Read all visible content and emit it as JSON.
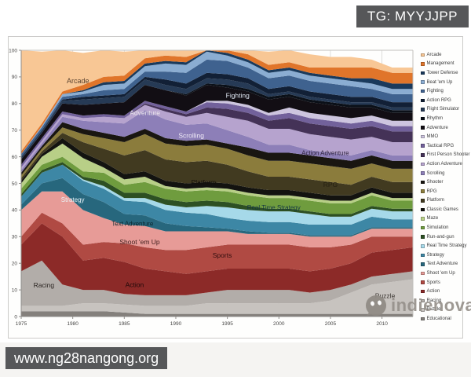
{
  "banners": {
    "top_right": "TG: MYYJJPP",
    "bottom_left": "www.ng28nangong.org"
  },
  "watermark": {
    "text": "indienova",
    "icon": "wechat-bubble-icon",
    "color": "#96918b"
  },
  "page": {
    "background": "#ffffff",
    "banner_bg": "#565759"
  },
  "chart_data": {
    "type": "area",
    "stacked": true,
    "title": "",
    "xlabel": "",
    "ylabel": "",
    "ylim": [
      0,
      100
    ],
    "yticks": [
      0,
      10,
      20,
      30,
      40,
      50,
      60,
      70,
      80,
      90,
      100
    ],
    "xticks": [
      1975,
      1980,
      1985,
      1990,
      1995,
      2000,
      2005,
      2010
    ],
    "grid": "both-light-gray",
    "legend_position": "right-outside",
    "x": [
      1975,
      1977,
      1979,
      1981,
      1983,
      1985,
      1987,
      1989,
      1991,
      1993,
      1995,
      1997,
      1999,
      2001,
      2003,
      2005,
      2007,
      2009,
      2011,
      2013
    ],
    "series": [
      {
        "name": "Educational",
        "color": "#84807c",
        "values": [
          2,
          2,
          2,
          2,
          2,
          1.5,
          1,
          1,
          1,
          1,
          1,
          1,
          1,
          1,
          1,
          1,
          1,
          1,
          1,
          1
        ]
      },
      {
        "name": "Puzzle",
        "color": "#c7c3bf",
        "values": [
          2,
          2,
          2,
          3,
          3,
          3,
          3,
          3,
          3,
          4,
          4,
          4,
          4,
          4,
          4,
          5,
          8,
          11,
          12,
          13
        ]
      },
      {
        "name": "Racing",
        "color": "#b2ada9",
        "values": [
          13,
          17,
          8,
          5,
          5,
          4,
          4,
          4,
          4,
          4,
          5,
          5,
          5,
          5,
          4,
          4,
          3,
          3,
          3,
          3
        ]
      },
      {
        "name": "Action",
        "color": "#8c2a28",
        "values": [
          10,
          14,
          18,
          11,
          12,
          12,
          10,
          9,
          8,
          8,
          8,
          8,
          8,
          8,
          8,
          8,
          8,
          9,
          9,
          9
        ]
      },
      {
        "name": "Sports",
        "color": "#b04a43",
        "values": [
          3,
          4,
          5,
          6,
          6,
          7,
          8,
          8,
          9,
          9,
          9,
          9,
          9,
          9,
          9,
          8,
          7,
          6,
          5,
          4
        ]
      },
      {
        "name": "Shoot 'em Up",
        "color": "#e79b97",
        "values": [
          10,
          8,
          12,
          13,
          9,
          7,
          8,
          7,
          7,
          6,
          5,
          4,
          4,
          4,
          4,
          4,
          3,
          3,
          3,
          3
        ]
      },
      {
        "name": "Text Adventure",
        "color": "#27677d",
        "values": [
          2,
          3,
          5,
          6,
          6,
          4,
          4,
          3,
          2,
          1.5,
          1,
          1,
          0.5,
          0.5,
          0.5,
          0.5,
          0.5,
          0.5,
          0.5,
          0.5
        ]
      },
      {
        "name": "Strategy",
        "color": "#3d87a5",
        "values": [
          3,
          4,
          5,
          5,
          5,
          5,
          5,
          5,
          5,
          5,
          4,
          4,
          4,
          4,
          4,
          4,
          4,
          4,
          3,
          3
        ]
      },
      {
        "name": "Real Time Strategy",
        "color": "#a6d9e9",
        "values": [
          0,
          0,
          0,
          0.5,
          1,
          1,
          1.5,
          2,
          2,
          3,
          4,
          4,
          4,
          4,
          4,
          3,
          3,
          3,
          3,
          3
        ]
      },
      {
        "name": "Run-and-gun",
        "color": "#2d5023",
        "values": [
          1,
          1,
          1,
          1,
          2,
          2,
          2,
          2,
          2,
          2,
          2,
          1.5,
          1,
          1,
          1,
          1,
          1,
          1,
          1,
          1
        ]
      },
      {
        "name": "Simulation",
        "color": "#6f9c3e",
        "values": [
          2,
          2,
          2,
          2,
          3,
          3,
          4,
          4,
          4,
          4,
          4,
          4,
          4,
          4,
          4,
          4,
          4,
          4,
          3,
          3
        ]
      },
      {
        "name": "Maze",
        "color": "#b8cf87",
        "values": [
          2,
          3,
          5,
          5,
          2,
          2,
          2,
          1,
          1,
          1,
          1,
          1,
          1,
          1,
          1,
          1,
          1,
          1,
          1,
          1
        ]
      },
      {
        "name": "Classic Games",
        "color": "#131310",
        "values": [
          1,
          1,
          2,
          2,
          2,
          2,
          2,
          2,
          2,
          2,
          2,
          2,
          2,
          2,
          2,
          2,
          2,
          2,
          2,
          2
        ]
      },
      {
        "name": "Platform",
        "color": "#413a20",
        "values": [
          1,
          1,
          2,
          4,
          5,
          7,
          8,
          8,
          8,
          8,
          7,
          6,
          5,
          5,
          5,
          5,
          4,
          4,
          4,
          4
        ]
      },
      {
        "name": "RPG",
        "color": "#8b7c3c",
        "values": [
          1,
          1,
          2,
          3,
          4,
          5,
          6,
          6,
          6,
          6,
          6,
          6,
          6,
          6,
          6,
          6,
          6,
          5,
          5,
          5
        ]
      },
      {
        "name": "Shooter",
        "color": "#191611",
        "values": [
          1,
          1,
          2,
          2,
          2,
          2,
          2,
          2,
          2,
          2,
          2,
          3,
          3,
          3,
          3,
          3,
          3,
          3,
          3,
          3
        ]
      },
      {
        "name": "Scrolling",
        "color": "#8d7fb8",
        "values": [
          1,
          1,
          2,
          3,
          4,
          5,
          7,
          7,
          6,
          6,
          5,
          4,
          3,
          3,
          2,
          2,
          2,
          2,
          2,
          2
        ]
      },
      {
        "name": "Action Adventure",
        "color": "#b6a3ce",
        "values": [
          1,
          1,
          1,
          1,
          2,
          2,
          2,
          3,
          3,
          4,
          5,
          6,
          6,
          6,
          6,
          6,
          6,
          5,
          5,
          5
        ]
      },
      {
        "name": "First Person Shooter",
        "color": "#443257",
        "values": [
          0,
          0,
          0,
          0,
          0,
          0,
          0.5,
          1,
          1,
          2,
          3,
          3,
          3,
          4,
          4,
          4,
          4,
          4,
          4,
          4
        ]
      },
      {
        "name": "Tactical RPG",
        "color": "#72619b",
        "values": [
          1,
          1,
          1,
          1,
          1,
          1,
          1,
          1,
          1,
          2,
          2,
          2,
          2,
          2,
          2,
          2,
          2,
          2,
          2,
          2
        ]
      },
      {
        "name": "MMO",
        "color": "#cdc5df",
        "values": [
          0,
          0,
          0,
          0,
          0,
          0,
          0,
          0,
          0,
          0.5,
          1,
          1,
          1,
          2,
          2,
          2,
          2,
          2,
          2,
          2
        ]
      },
      {
        "name": "Adventure",
        "color": "#120e14",
        "values": [
          2,
          2,
          3,
          4,
          4,
          5,
          6,
          6,
          6,
          6,
          5,
          5,
          5,
          4,
          4,
          4,
          4,
          3,
          3,
          3
        ]
      },
      {
        "name": "Rhythm",
        "color": "#0b1018",
        "values": [
          0,
          0,
          0,
          0,
          0,
          0,
          0,
          0,
          0.5,
          0.5,
          1,
          1,
          1,
          1,
          1,
          1,
          1,
          1,
          1,
          1
        ]
      },
      {
        "name": "Flight Simulator",
        "color": "#263a55",
        "values": [
          1,
          1,
          1,
          2,
          2,
          2,
          2,
          2,
          2,
          2,
          2,
          2,
          1,
          1,
          1,
          1,
          1,
          1,
          1,
          1
        ]
      },
      {
        "name": "Action RPG",
        "color": "#122036",
        "values": [
          0,
          0,
          0.5,
          1,
          1,
          1,
          1,
          2,
          2,
          2,
          2,
          2,
          2,
          2,
          2,
          2,
          2,
          2,
          2,
          2
        ]
      },
      {
        "name": "Fighting",
        "color": "#3f628f",
        "values": [
          1,
          1,
          1,
          1,
          2,
          2,
          2,
          3,
          4,
          5,
          5,
          4,
          4,
          4,
          4,
          4,
          4,
          3,
          3,
          3
        ]
      },
      {
        "name": "Beat 'em Up",
        "color": "#8badd2",
        "values": [
          0,
          0.5,
          1,
          1,
          2,
          2,
          2,
          3,
          3,
          3,
          2,
          2,
          2,
          2,
          2,
          2,
          2,
          2,
          2,
          2
        ]
      },
      {
        "name": "Tower Defense",
        "color": "#1a3a5c",
        "values": [
          0,
          0,
          0,
          0.5,
          1,
          1,
          1,
          1,
          1,
          1,
          1,
          1,
          1,
          1,
          1,
          1,
          1,
          2,
          2,
          2
        ]
      },
      {
        "name": "Management",
        "color": "#e0752a",
        "values": [
          1,
          1,
          1,
          2,
          2,
          2,
          2,
          2,
          2,
          2,
          2,
          2,
          2,
          2,
          2,
          3,
          4,
          4,
          4,
          4
        ]
      },
      {
        "name": "Arcade",
        "color": "#f8c795",
        "values": [
          38,
          27,
          16,
          12,
          10,
          9,
          8,
          7,
          7,
          6,
          5,
          5,
          5,
          5,
          5,
          4,
          4,
          3,
          2,
          2
        ]
      }
    ],
    "legend_order_top_to_bottom": [
      "Arcade",
      "Management",
      "Tower Defense",
      "Beat 'em Up",
      "Fighting",
      "Action RPG",
      "Flight Simulator",
      "Rhythm",
      "Adventure",
      "MMO",
      "Tactical RPG",
      "First Person Shooter",
      "Action Adventure",
      "Scrolling",
      "Shooter",
      "RPG",
      "Platform",
      "Classic Games",
      "Maze",
      "Simulation",
      "Run-and-gun",
      "Real Time Strategy",
      "Strategy",
      "Text Adventure",
      "Shoot 'em Up",
      "Sports",
      "Action",
      "Racing",
      "Puzzle",
      "Educational"
    ],
    "area_labels": [
      {
        "text": "Arcade",
        "year": 1980.5,
        "value": 88.5,
        "color": "#5b4330",
        "size": 9
      },
      {
        "text": "Adventure",
        "year": 1987,
        "value": 76.5,
        "color": "#e9e5ec",
        "size": 8.5
      },
      {
        "text": "Fighting",
        "year": 1996,
        "value": 83,
        "color": "#dfe7f2",
        "size": 8.5
      },
      {
        "text": "Scrolling",
        "year": 1991.5,
        "value": 68,
        "color": "#efeaf6",
        "size": 8.5
      },
      {
        "text": "Action Adventure",
        "year": 2004.5,
        "value": 61.5,
        "color": "#2f2440",
        "size": 8
      },
      {
        "text": "Platform",
        "year": 1992.7,
        "value": 50.5,
        "color": "#14110a",
        "size": 8.5
      },
      {
        "text": "RPG",
        "year": 2005,
        "value": 49.5,
        "color": "#241f10",
        "size": 8.5
      },
      {
        "text": "Real Time Strategy",
        "year": 1999.5,
        "value": 41,
        "color": "#123642",
        "size": 8
      },
      {
        "text": "Strategy",
        "year": 1980,
        "value": 44,
        "color": "#e8f3f7",
        "size": 8
      },
      {
        "text": "Text Adventure",
        "year": 1985.8,
        "value": 35,
        "color": "#0c2830",
        "size": 8
      },
      {
        "text": "Shoot 'em Up",
        "year": 1986.5,
        "value": 28,
        "color": "#41201f",
        "size": 8.5
      },
      {
        "text": "Sports",
        "year": 1994.5,
        "value": 23,
        "color": "#2f0d0e",
        "size": 8.5
      },
      {
        "text": "Action",
        "year": 1986,
        "value": 12,
        "color": "#1d0808",
        "size": 8.5
      },
      {
        "text": "Racing",
        "year": 1977.2,
        "value": 11.8,
        "color": "#2b2522",
        "size": 8.5
      },
      {
        "text": "Puzzle",
        "year": 2010.3,
        "value": 7.8,
        "color": "#3f3a36",
        "size": 8.5
      }
    ]
  }
}
